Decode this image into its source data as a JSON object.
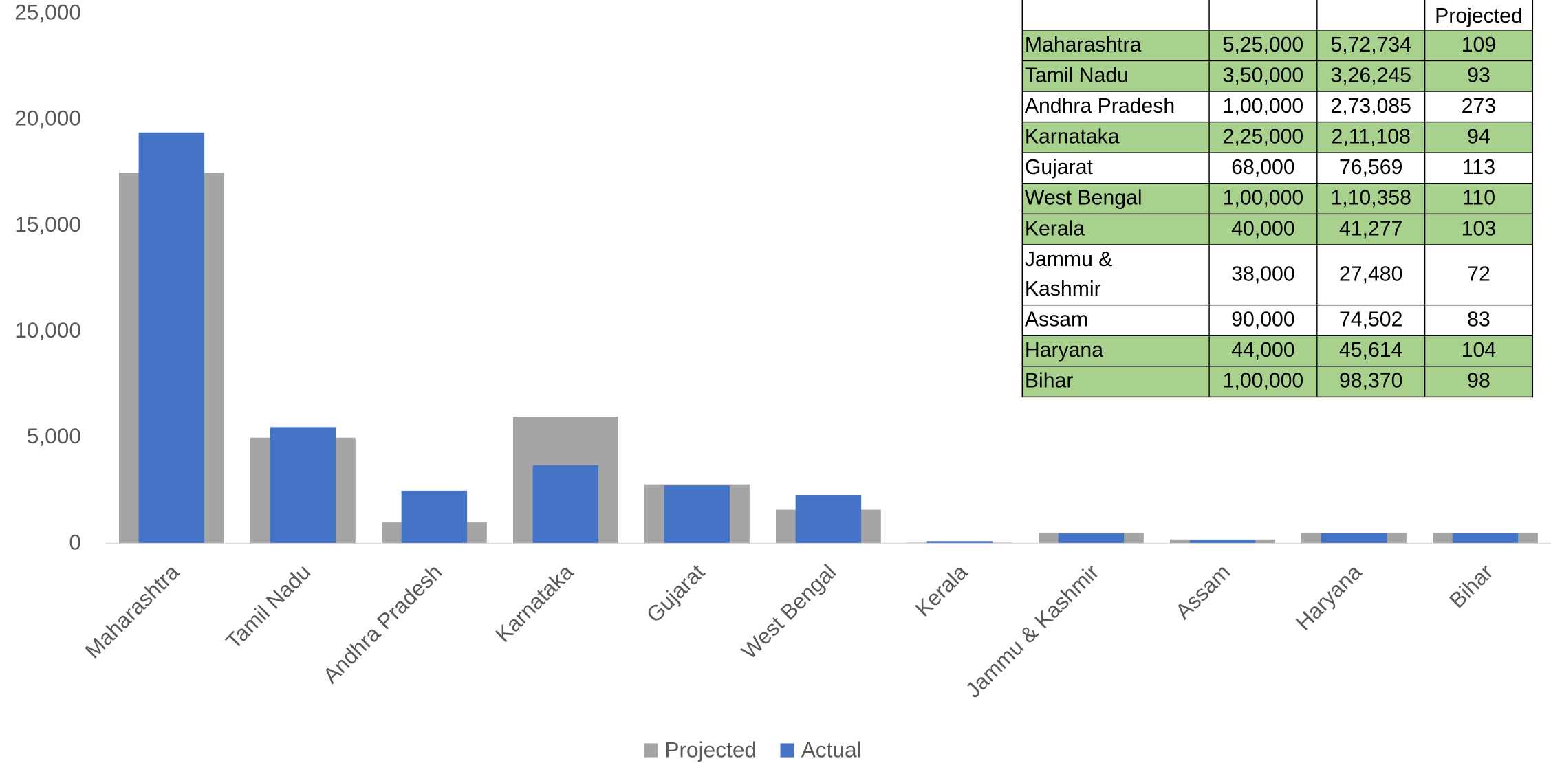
{
  "chart_data": {
    "type": "bar",
    "categories": [
      "Maharashtra",
      "Tamil Nadu",
      "Andhra Pradesh",
      "Karnataka",
      "Gujarat",
      "West Bengal",
      "Kerala",
      "Jammu & Kashmir",
      "Assam",
      "Haryana",
      "Bihar"
    ],
    "series": [
      {
        "name": "Projected",
        "color": "#a5a5a5",
        "values": [
          17500,
          5000,
          1000,
          6000,
          2800,
          1600,
          50,
          500,
          200,
          500,
          500
        ]
      },
      {
        "name": "Actual",
        "color": "#4472c4",
        "values": [
          19400,
          5500,
          2500,
          3700,
          2750,
          2300,
          120,
          480,
          180,
          500,
          500
        ]
      }
    ],
    "ylim": [
      0,
      25000
    ],
    "yticks": [
      0,
      {
        "value": 5000,
        "label": "5,000"
      },
      {
        "value": 10000,
        "label": "10,000"
      },
      {
        "value": 15000,
        "label": "15,000"
      },
      {
        "value": 20000,
        "label": "20,000"
      },
      {
        "value": 25000,
        "label": "25,000"
      }
    ],
    "grid": false,
    "legend": "bottom"
  },
  "table": {
    "header": "Projected",
    "rows": [
      {
        "cells": [
          "Maharashtra",
          "5,25,000",
          "5,72,734",
          "109"
        ],
        "color": "#a9d18e"
      },
      {
        "cells": [
          "Tamil Nadu",
          "3,50,000",
          "3,26,245",
          "93"
        ],
        "color": "#a9d18e"
      },
      {
        "cells": [
          "Andhra Pradesh",
          "1,00,000",
          "2,73,085",
          "273"
        ],
        "color": "#ffffff"
      },
      {
        "cells": [
          "Karnataka",
          "2,25,000",
          "2,11,108",
          "94"
        ],
        "color": "#a9d18e"
      },
      {
        "cells": [
          "Gujarat",
          "68,000",
          "76,569",
          "113"
        ],
        "color": "#ffffff"
      },
      {
        "cells": [
          "West Bengal",
          "1,00,000",
          "1,10,358",
          "110"
        ],
        "color": "#a9d18e"
      },
      {
        "cells": [
          "Kerala",
          "40,000",
          "41,277",
          "103"
        ],
        "color": "#a9d18e"
      },
      {
        "cells": [
          "Jammu & Kashmir",
          "38,000",
          "27,480",
          "72"
        ],
        "color": "#ffffff"
      },
      {
        "cells": [
          "Assam",
          "90,000",
          "74,502",
          "83"
        ],
        "color": "#ffffff"
      },
      {
        "cells": [
          "Haryana",
          "44,000",
          "45,614",
          "104"
        ],
        "color": "#a9d18e"
      },
      {
        "cells": [
          "Bihar",
          "1,00,000",
          "98,370",
          "98"
        ],
        "color": "#a9d18e"
      }
    ]
  }
}
